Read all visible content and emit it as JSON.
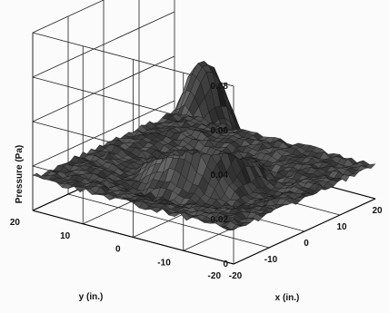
{
  "chart_data": {
    "type": "surface",
    "title": "",
    "xlabel": "x (in.)",
    "ylabel": "y (in.)",
    "zlabel": "Pressure (Pa)",
    "xlim": [
      -20,
      20
    ],
    "ylim": [
      -20,
      20
    ],
    "zlim": [
      0,
      0.08
    ],
    "xticks": [
      -20,
      -10,
      0,
      10,
      20
    ],
    "yticks": [
      20,
      10,
      0,
      -10,
      -20
    ],
    "zticks": [
      0,
      0.02,
      0.04,
      0.06,
      0.08
    ],
    "xtick_labels": [
      "-20",
      "-10",
      "0",
      "10",
      "20"
    ],
    "ytick_labels": [
      "20",
      "10",
      "0",
      "-10",
      "-20"
    ],
    "ztick_labels": [
      "0",
      "0.02",
      "0.04",
      "0.06",
      "0.08"
    ],
    "grid": true,
    "baseline_pressure": 0.015,
    "peak": {
      "x": 0,
      "y": 0,
      "pressure": 0.065
    },
    "colormap": "grayscale"
  }
}
